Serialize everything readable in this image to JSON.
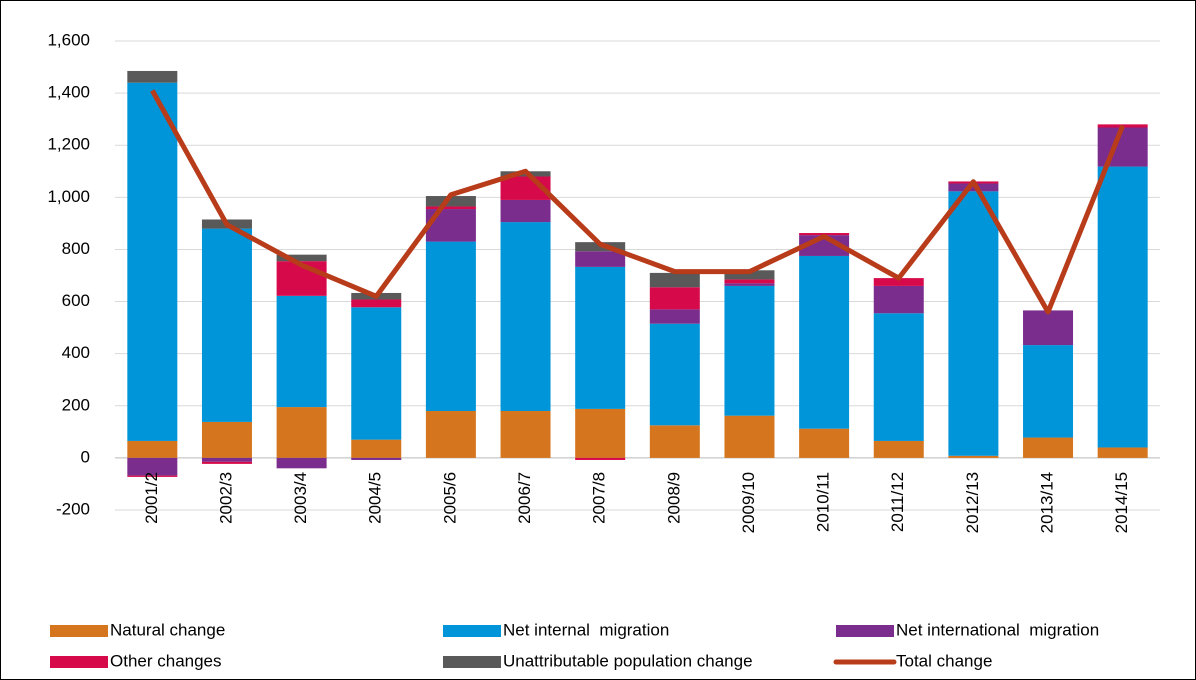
{
  "chart_data": {
    "type": "bar",
    "categories": [
      "2001/2",
      "2002/3",
      "2003/4",
      "2004/5",
      "2005/6",
      "2006/7",
      "2007/8",
      "2008/9",
      "2009/10",
      "2010/11",
      "2011/12",
      "2012/13",
      "2013/14",
      "2014/15"
    ],
    "series": [
      {
        "name": "Natural change",
        "color": "#d5761f",
        "values": [
          65,
          138,
          195,
          70,
          180,
          180,
          188,
          125,
          162,
          112,
          65,
          8,
          78,
          40
        ]
      },
      {
        "name": "Net internal  migration",
        "color": "#0095d9",
        "values": [
          1375,
          742,
          427,
          508,
          650,
          725,
          545,
          390,
          498,
          663,
          490,
          1015,
          355,
          1078
        ]
      },
      {
        "name": "Net international  migration",
        "color": "#7b2d8e",
        "values": [
          -68,
          -15,
          -40,
          -8,
          125,
          85,
          60,
          55,
          10,
          80,
          105,
          30,
          133,
          150
        ]
      },
      {
        "name": "Other changes",
        "color": "#d6094a",
        "values": [
          -5,
          -8,
          133,
          30,
          10,
          90,
          -8,
          85,
          15,
          8,
          30,
          8,
          0,
          12
        ]
      },
      {
        "name": "Unattributable population change",
        "color": "#595959",
        "values": [
          45,
          35,
          25,
          25,
          40,
          20,
          35,
          55,
          35,
          0,
          0,
          0,
          0,
          0
        ]
      },
      {
        "name": "Total change",
        "color": "#b83b1a",
        "type": "line",
        "values": [
          1410,
          895,
          740,
          620,
          1010,
          1100,
          820,
          715,
          715,
          850,
          690,
          1060,
          560,
          1275
        ]
      }
    ],
    "ylim": [
      -200,
      1600
    ],
    "yticks": [
      -200,
      0,
      200,
      400,
      600,
      800,
      {
        "value": 1000,
        "label": "1,000"
      },
      {
        "value": 1200,
        "label": "1,200"
      },
      {
        "value": 1400,
        "label": "1,400"
      },
      {
        "value": 1600,
        "label": "1,600"
      }
    ],
    "grid": true
  }
}
